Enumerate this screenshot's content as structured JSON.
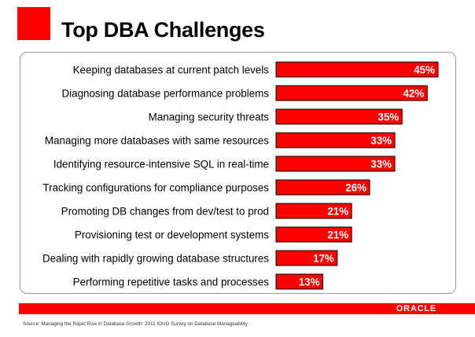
{
  "slide": {
    "title": "Top DBA Challenges",
    "brand": "ORACLE",
    "source": "Source: Managing the Rapid Rise in Database Growth: 2011 IOUG Survey on Database Manageability"
  },
  "colors": {
    "accent": "#ff0000",
    "bar_fill": "#ff0000",
    "bar_outline": "#000000",
    "frame": "#9a9a9a"
  },
  "chart_data": {
    "type": "bar",
    "orientation": "horizontal",
    "title": "Top DBA Challenges",
    "xlabel": "",
    "ylabel": "",
    "xlim": [
      0,
      45
    ],
    "grid": false,
    "legend": "none",
    "value_suffix": "%",
    "categories": [
      "Keeping databases at current patch levels",
      "Diagnosing database performance problems",
      "Managing security threats",
      "Managing more databases with same resources",
      "Identifying resource-intensive SQL in real-time",
      "Tracking configurations for compliance purposes",
      "Promoting DB changes from dev/test to prod",
      "Provisioning test or development systems",
      "Dealing with rapidly growing database structures",
      "Performing repetitive tasks and processes"
    ],
    "values": [
      45,
      42,
      35,
      33,
      33,
      26,
      21,
      21,
      17,
      13
    ],
    "labels": [
      "45%",
      "42%",
      "35%",
      "33%",
      "33%",
      "26%",
      "21%",
      "21%",
      "17%",
      "13%"
    ]
  }
}
